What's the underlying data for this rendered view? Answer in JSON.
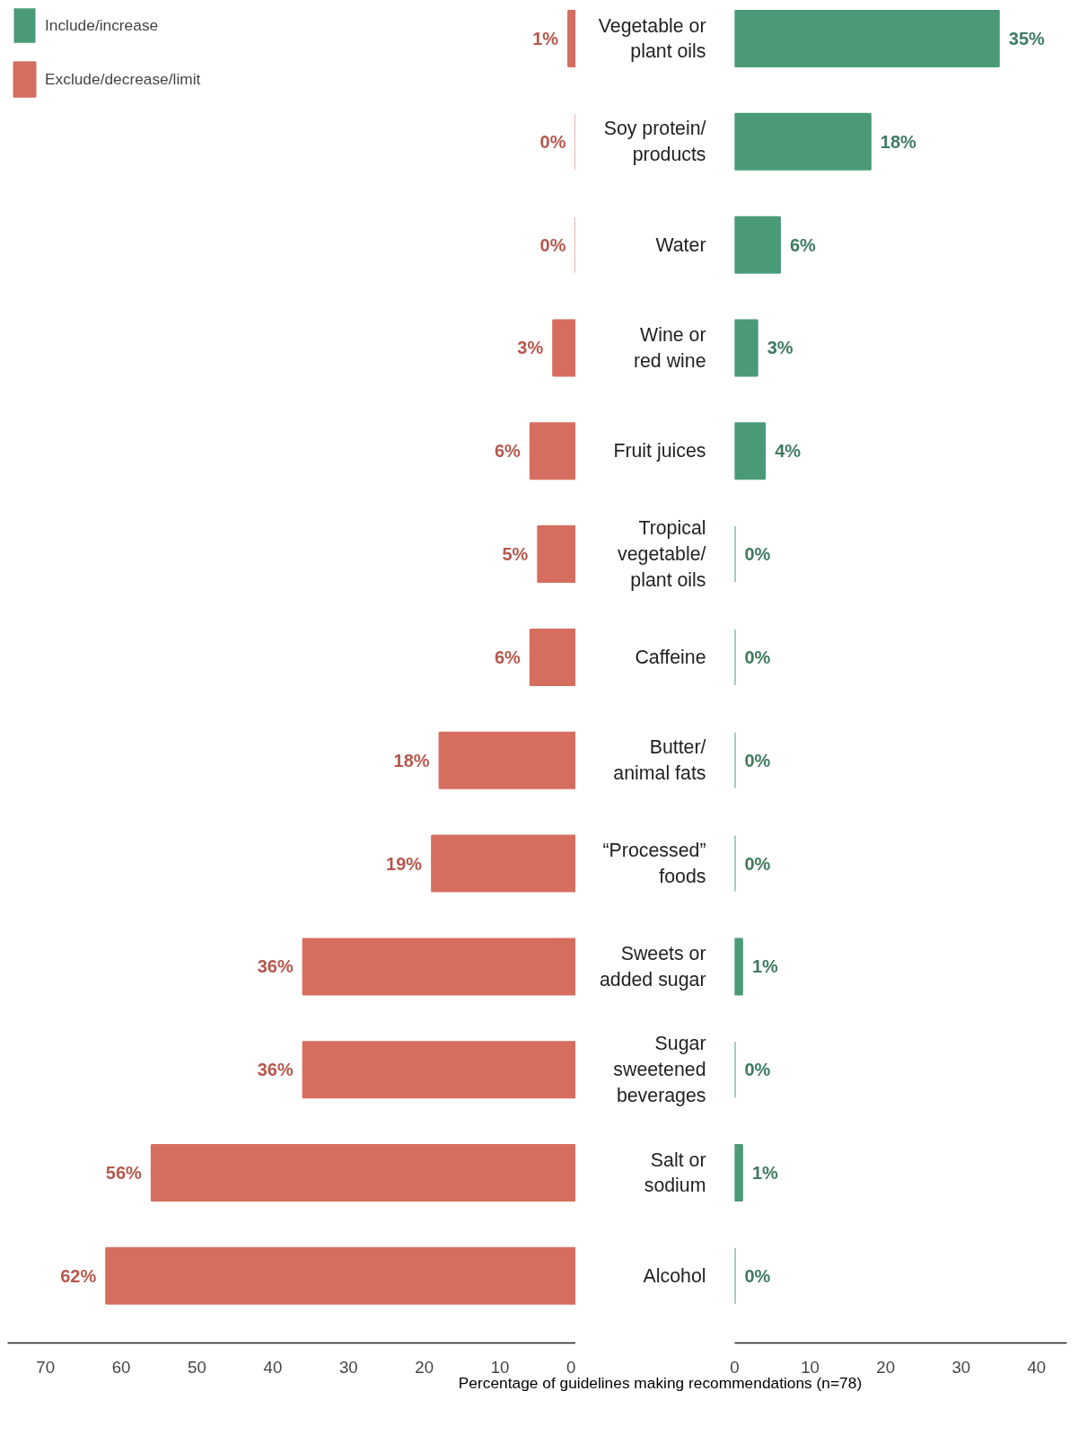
{
  "chart_data": [
    {
      "type": "bar",
      "orientation": "horizontal",
      "categories": [
        "Vegetable or\nplant oils",
        "Soy protein/\nproducts",
        "Water",
        "Wine or\nred wine",
        "Fruit juices",
        "Tropical\nvegetable/\nplant oils",
        "Caffeine",
        "Butter/\nanimal fats",
        "“Processed”\nfoods",
        "Sweets or\nadded sugar",
        "Sugar\nsweetened\nbeverages",
        "Salt or\nsodium",
        "Alcohol"
      ],
      "series": [
        {
          "name": "Exclude/decrease/limit",
          "color": "#d66e5f",
          "values": [
            1,
            0,
            0,
            3,
            6,
            5,
            6,
            18,
            19,
            36,
            36,
            56,
            62
          ],
          "value_labels": [
            "1%",
            "0%",
            "0%",
            "3%",
            "6%",
            "5%",
            "6%",
            "18%",
            "19%",
            "36%",
            "36%",
            "56%",
            "62%"
          ]
        }
      ],
      "xlim": [
        75,
        0
      ],
      "xticks": [
        70,
        60,
        50,
        40,
        30,
        20,
        10,
        0
      ],
      "tick_labels": "x",
      "grid": false,
      "legend": "top left"
    },
    {
      "type": "bar",
      "orientation": "horizontal",
      "categories": [
        "Vegetable or\nplant oils",
        "Soy protein/\nproducts",
        "Water",
        "Wine or\nred wine",
        "Fruit juices",
        "Tropical\nvegetable/\nplant oils",
        "Caffeine",
        "Butter/\nanimal fats",
        "“Processed”\nfoods",
        "Sweets or\nadded sugar",
        "Sugar\nsweetened\nbeverages",
        "Salt or\nsodium",
        "Alcohol"
      ],
      "series": [
        {
          "name": "Include/increase",
          "color": "#4a9a78",
          "values": [
            35,
            18,
            6,
            3,
            4,
            0,
            0,
            0,
            0,
            1,
            0,
            1,
            0
          ],
          "value_labels": [
            "35%",
            "18%",
            "6%",
            "3%",
            "4%",
            "0%",
            "0%",
            "0%",
            "0%",
            "1%",
            "0%",
            "1%",
            "0%"
          ]
        }
      ],
      "xlim": [
        0,
        44
      ],
      "xticks": [
        0,
        10,
        20,
        30,
        40
      ],
      "grid": false,
      "legend": "top left",
      "xlabel": "Percentage of guidelines making recommendations (n=78)"
    }
  ]
}
